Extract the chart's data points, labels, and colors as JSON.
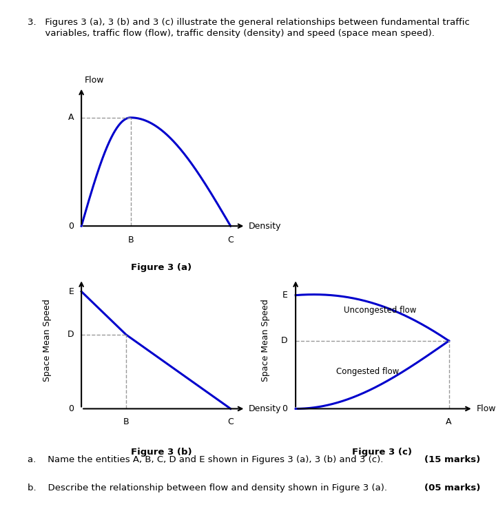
{
  "fig3a_caption": "Figure 3 (a)",
  "fig3b_caption": "Figure 3 (b)",
  "fig3c_caption": "Figure 3 (c)",
  "curve_color": "#0000CC",
  "curve_linewidth": 2.2,
  "dashed_color": "#999999",
  "header_line1": "3.   Figures 3 (a), 3 (b) and 3 (c) illustrate the general relationships between fundamental traffic",
  "header_line2": "      variables, traffic flow (flow), traffic density (density) and speed (space mean speed).",
  "qa_text": "a.    Name the entities A, B, C, D and E shown in Figures 3 (a), 3 (b) and 3 (c).",
  "qa_marks": "(15 marks)",
  "qb_text": "b.    Describe the relationship between flow and density shown in Figure 3 (a).",
  "qb_marks": "(05 marks)"
}
